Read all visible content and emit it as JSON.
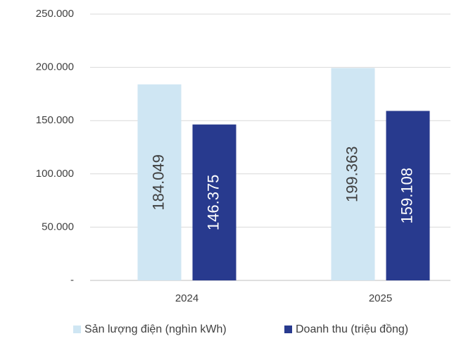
{
  "chart_data": {
    "type": "bar",
    "categories": [
      "2024",
      "2025"
    ],
    "series": [
      {
        "name": "Sản lượng điện (nghìn kWh)",
        "color": "#cfe6f3",
        "values": [
          184049,
          199363
        ],
        "value_labels": [
          "184.049",
          "199.363"
        ]
      },
      {
        "name": "Doanh thu (triệu đồng)",
        "color": "#283a8e",
        "values": [
          146375,
          159108
        ],
        "value_labels": [
          "146.375",
          "159.108"
        ]
      }
    ],
    "ylim": [
      0,
      250000
    ],
    "yticks": [
      {
        "value": 0,
        "label": "-"
      },
      {
        "value": 50000,
        "label": "50.000"
      },
      {
        "value": 100000,
        "label": "100.000"
      },
      {
        "value": 150000,
        "label": "150.000"
      },
      {
        "value": 200000,
        "label": "200.000"
      },
      {
        "value": 250000,
        "label": "250.000"
      }
    ],
    "grid": true,
    "legend": "bottom"
  }
}
